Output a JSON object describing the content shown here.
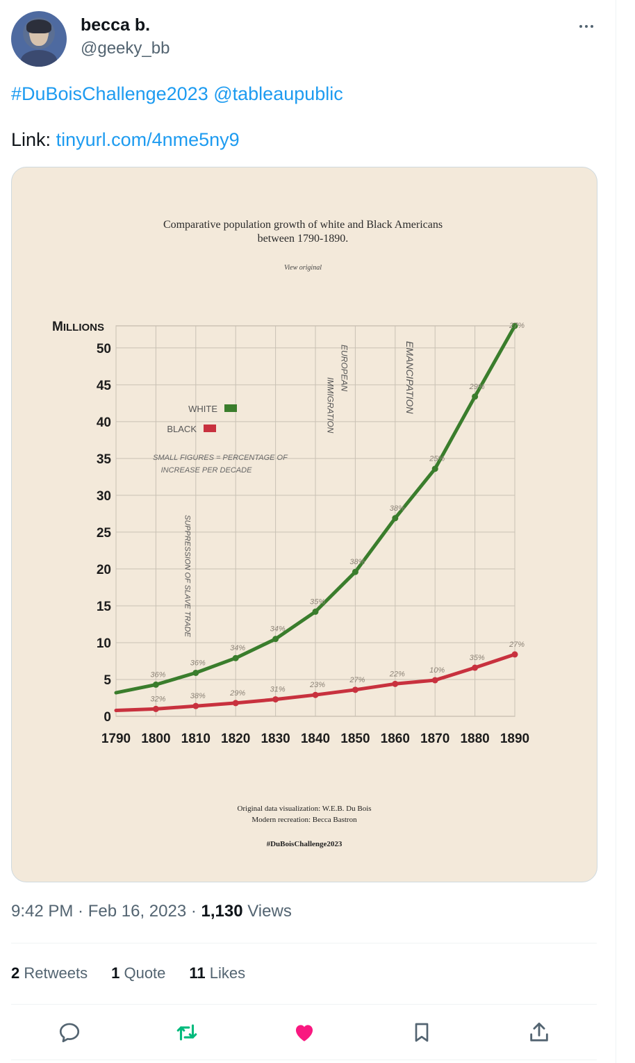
{
  "tweet": {
    "author_name": "becca b.",
    "author_handle": "@geeky_bb",
    "hashtag": "#DuBoisChallenge2023",
    "mention": "@tableaupublic",
    "link_prefix": "Link:",
    "link_text": "tinyurl.com/4nme5ny9",
    "time": "9:42 PM",
    "date": "Feb 16, 2023",
    "views_count": "1,130",
    "views_label": "Views",
    "retweets_count": "2",
    "retweets_label": "Retweets",
    "quotes_count": "1",
    "quotes_label": "Quote",
    "likes_count": "11",
    "likes_label": "Likes"
  },
  "actions": {
    "reply_icon": "speech-bubble-icon",
    "retweet_icon": "retweet-arrows-icon",
    "like_icon": "heart-icon",
    "bookmark_icon": "bookmark-icon",
    "share_icon": "upload-arrow-icon",
    "retweet_color": "#00ba7c",
    "like_color": "#f91880"
  },
  "chart_data": {
    "type": "line",
    "title_line1": "Comparative population growth of white and Black Americans",
    "title_line2": "between 1790-1890.",
    "view_original": "View original",
    "ylabel": "Millions",
    "ylim": [
      0,
      53
    ],
    "yticks": [
      0,
      5,
      10,
      15,
      20,
      25,
      30,
      35,
      40,
      45,
      50
    ],
    "x": [
      1790,
      1800,
      1810,
      1820,
      1830,
      1840,
      1850,
      1860,
      1870,
      1880,
      1890
    ],
    "grid": true,
    "legend_position": "upper-left",
    "legend_note_line1": "SMALL FIGURES = PERCENTAGE OF",
    "legend_note_line2": "INCREASE PER DECADE",
    "series": [
      {
        "name": "WHITE",
        "color": "#3a7d2c",
        "values": [
          3.2,
          4.3,
          5.9,
          7.9,
          10.5,
          14.2,
          19.6,
          26.9,
          33.6,
          43.4,
          55.1
        ],
        "pct_labels": [
          "",
          "36%",
          "36%",
          "34%",
          "34%",
          "35%",
          "38%",
          "38%",
          "25%",
          "29%",
          "27%"
        ]
      },
      {
        "name": "BLACK",
        "color": "#c8313e",
        "values": [
          0.8,
          1.0,
          1.4,
          1.8,
          2.3,
          2.9,
          3.6,
          4.4,
          4.9,
          6.6,
          8.4
        ],
        "pct_labels": [
          "",
          "32%",
          "38%",
          "29%",
          "31%",
          "23%",
          "27%",
          "22%",
          "10%",
          "35%",
          "27%"
        ]
      }
    ],
    "annotations": [
      {
        "text": "SUPPRESSION OF SLAVE TRADE",
        "x": 1808
      },
      {
        "text_line1": "EUROPEAN",
        "text_line2": "IMMIGRATION",
        "x": 1845
      },
      {
        "text": "EMANCIPATION",
        "x": 1863
      }
    ],
    "credit_line1": "Original data visualization: W.E.B. Du Bois",
    "credit_line2": "Modern recreation: Becca Bastron",
    "credit_hashtag": "#DuBoisChallenge2023"
  }
}
